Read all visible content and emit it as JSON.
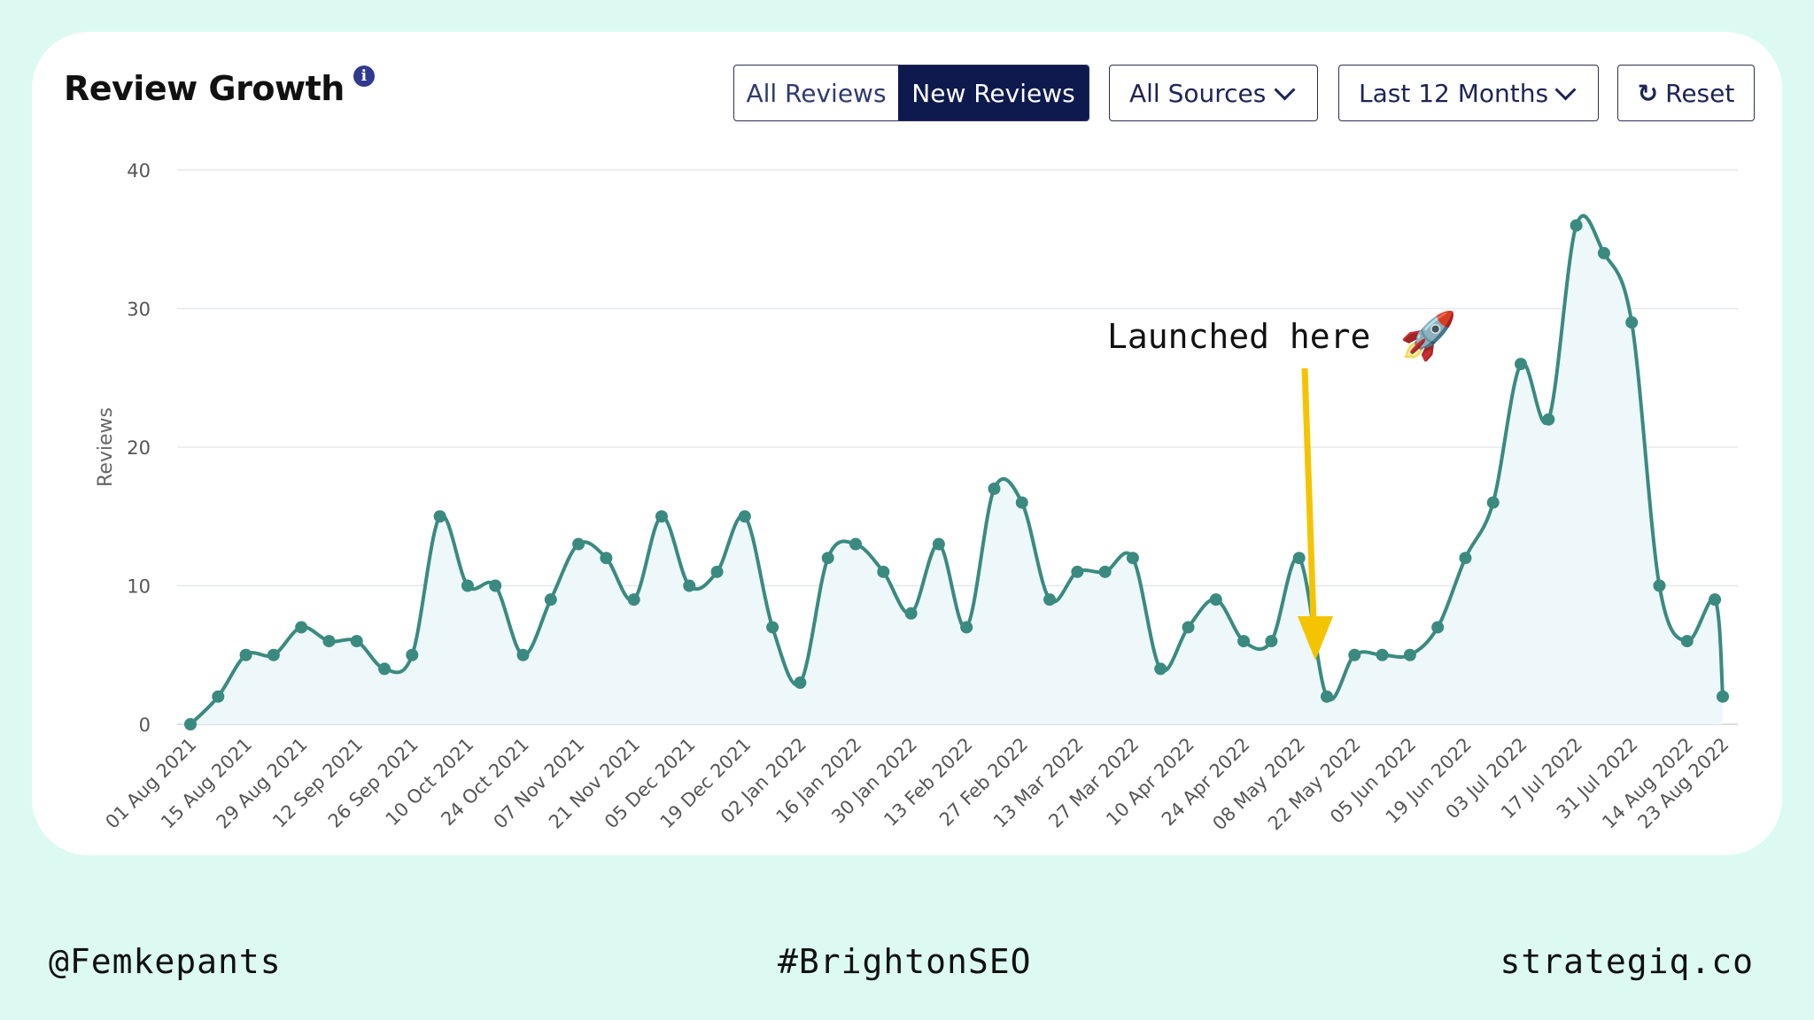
{
  "header": {
    "title": "Review Growth",
    "info_icon": "info-icon",
    "toggle": {
      "all_label": "All Reviews",
      "new_label": "New Reviews",
      "selected": "New Reviews"
    },
    "sources_label": "All Sources",
    "range_label": "Last 12 Months",
    "reset_label": "Reset"
  },
  "annotation": {
    "text": "Launched here",
    "emoji": "🚀",
    "arrow_color": "#f5c400",
    "points_to": "22 May 2022"
  },
  "footer": {
    "left": "@Femkepants",
    "center": "#BrightonSEO",
    "right": "strategiq.co"
  },
  "colors": {
    "line": "#3a8a80",
    "fill": "#eef8fb",
    "background": "#dcfaf1",
    "toggle_active": "#0e1a4e"
  },
  "chart_data": {
    "type": "area",
    "ylabel": "Reviews",
    "ylim": [
      0,
      40
    ],
    "yticks": [
      0,
      10,
      20,
      30,
      40
    ],
    "grid": true,
    "x_tick_labels": [
      "01 Aug 2021",
      "15 Aug 2021",
      "29 Aug 2021",
      "12 Sep 2021",
      "26 Sep 2021",
      "10 Oct 2021",
      "24 Oct 2021",
      "07 Nov 2021",
      "21 Nov 2021",
      "05 Dec 2021",
      "19 Dec 2021",
      "02 Jan 2022",
      "16 Jan 2022",
      "30 Jan 2022",
      "13 Feb 2022",
      "27 Feb 2022",
      "13 Mar 2022",
      "27 Mar 2022",
      "10 Apr 2022",
      "24 Apr 2022",
      "08 May 2022",
      "22 May 2022",
      "05 Jun 2022",
      "19 Jun 2022",
      "03 Jul 2022",
      "17 Jul 2022",
      "31 Jul 2022",
      "14 Aug 2022",
      "23 Aug 2022"
    ],
    "x": [
      "01 Aug 2021",
      "08 Aug 2021",
      "15 Aug 2021",
      "22 Aug 2021",
      "29 Aug 2021",
      "05 Sep 2021",
      "12 Sep 2021",
      "19 Sep 2021",
      "26 Sep 2021",
      "03 Oct 2021",
      "10 Oct 2021",
      "17 Oct 2021",
      "24 Oct 2021",
      "31 Oct 2021",
      "07 Nov 2021",
      "14 Nov 2021",
      "21 Nov 2021",
      "28 Nov 2021",
      "05 Dec 2021",
      "12 Dec 2021",
      "19 Dec 2021",
      "26 Dec 2021",
      "02 Jan 2022",
      "09 Jan 2022",
      "16 Jan 2022",
      "23 Jan 2022",
      "30 Jan 2022",
      "06 Feb 2022",
      "13 Feb 2022",
      "20 Feb 2022",
      "27 Feb 2022",
      "06 Mar 2022",
      "13 Mar 2022",
      "20 Mar 2022",
      "27 Mar 2022",
      "03 Apr 2022",
      "10 Apr 2022",
      "17 Apr 2022",
      "24 Apr 2022",
      "01 May 2022",
      "08 May 2022",
      "15 May 2022",
      "22 May 2022",
      "29 May 2022",
      "05 Jun 2022",
      "12 Jun 2022",
      "19 Jun 2022",
      "26 Jun 2022",
      "03 Jul 2022",
      "10 Jul 2022",
      "17 Jul 2022",
      "24 Jul 2022",
      "31 Jul 2022",
      "07 Aug 2022",
      "14 Aug 2022",
      "21 Aug 2022",
      "23 Aug 2022"
    ],
    "series": [
      {
        "values": [
          0,
          2,
          5,
          5,
          7,
          6,
          6,
          4,
          5,
          15,
          10,
          10,
          5,
          9,
          13,
          12,
          9,
          15,
          10,
          11,
          15,
          7,
          3,
          12,
          13,
          11,
          8,
          13,
          7,
          17,
          16,
          9,
          11,
          11,
          12,
          4,
          7,
          9,
          6,
          6,
          12,
          2,
          5,
          5,
          5,
          7,
          12,
          16,
          26,
          22,
          36,
          34,
          29,
          10,
          6,
          9,
          2
        ]
      }
    ]
  }
}
